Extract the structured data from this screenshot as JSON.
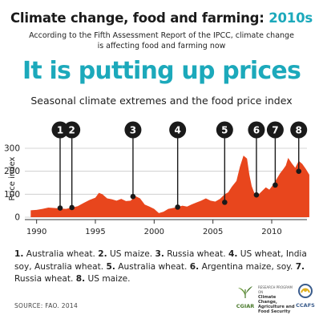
{
  "header": {
    "title": "Climate change, food and farming: ",
    "title_year": "2010s",
    "subtitle_line1": "According to the Fifth Assessment Report of the IPCC, climate change",
    "subtitle_line2": "is affecting food and farming now",
    "headline": "It is putting up prices",
    "subheadline": "Seasonal climate extremes and the food price index"
  },
  "colors": {
    "accent": "#1ca9bb",
    "area": "#e8461d",
    "marker": "#1a1a1a"
  },
  "chart_data": {
    "type": "area",
    "xlabel": "",
    "ylabel": "Price index",
    "xlim": [
      1989,
      2013
    ],
    "ylim": [
      0,
      300
    ],
    "x_ticks": [
      "1990",
      "1995",
      "2000",
      "2005",
      "2010"
    ],
    "y_ticks": [
      "0",
      "100",
      "200",
      "300"
    ],
    "grid": true,
    "x": [
      1989.5,
      1990,
      1990.5,
      1991,
      1991.5,
      1992,
      1992.5,
      1993,
      1993.5,
      1994,
      1994.5,
      1995,
      1995.3,
      1995.6,
      1996,
      1996.4,
      1996.8,
      1997.2,
      1997.6,
      1998,
      1998.4,
      1998.8,
      1999.2,
      1999.6,
      2000,
      2000.4,
      2000.8,
      2001.2,
      2001.6,
      2002,
      2002.4,
      2002.8,
      2003.2,
      2003.6,
      2004,
      2004.4,
      2004.8,
      2005.2,
      2005.6,
      2006,
      2006.3,
      2006.6,
      2007,
      2007.3,
      2007.6,
      2007.9,
      2008.1,
      2008.3,
      2008.6,
      2008.9,
      2009.2,
      2009.5,
      2009.8,
      2010.1,
      2010.4,
      2010.7,
      2011,
      2011.2,
      2011.4,
      2011.7,
      2012,
      2012.3,
      2012.6,
      2012.9,
      2013.2
    ],
    "values": [
      30,
      32,
      36,
      42,
      40,
      38,
      36,
      42,
      48,
      62,
      75,
      85,
      106,
      100,
      82,
      78,
      72,
      80,
      70,
      72,
      92,
      82,
      55,
      46,
      36,
      18,
      24,
      36,
      40,
      44,
      50,
      46,
      56,
      64,
      72,
      82,
      72,
      68,
      80,
      100,
      108,
      132,
      158,
      220,
      268,
      255,
      185,
      135,
      95,
      100,
      115,
      130,
      120,
      140,
      165,
      190,
      210,
      225,
      258,
      235,
      215,
      245,
      232,
      210,
      185
    ],
    "events": [
      {
        "number": "1",
        "year": 1992.0,
        "value": 40
      },
      {
        "number": "2",
        "year": 1993.0,
        "value": 42
      },
      {
        "number": "3",
        "year": 1998.2,
        "value": 90
      },
      {
        "number": "4",
        "year": 2002.0,
        "value": 44
      },
      {
        "number": "5",
        "year": 2006.0,
        "value": 65
      },
      {
        "number": "6",
        "year": 2008.7,
        "value": 97
      },
      {
        "number": "7",
        "year": 2010.3,
        "value": 140
      },
      {
        "number": "8",
        "year": 2012.3,
        "value": 200
      }
    ]
  },
  "legend": [
    {
      "num": "1.",
      "text": " Australia wheat. "
    },
    {
      "num": "2.",
      "text": " US maize. "
    },
    {
      "num": "3.",
      "text": " Russia wheat. "
    },
    {
      "num": "4.",
      "text": " US wheat, India soy, Australia wheat. "
    },
    {
      "num": "5.",
      "text": " Australia wheat. "
    },
    {
      "num": "6.",
      "text": " Argentina maize, soy. "
    },
    {
      "num": "7.",
      "text": " Russia wheat. "
    },
    {
      "num": "8.",
      "text": " US maize."
    }
  ],
  "source": "SOURCE: FAO. 2014",
  "logos": {
    "cgiar": "CGIAR",
    "program_small": "RESEARCH PROGRAM ON",
    "program_line1": "Climate Change,",
    "program_line2": "Agriculture and",
    "program_line3": "Food Security",
    "ccafs": "CCAFS"
  }
}
